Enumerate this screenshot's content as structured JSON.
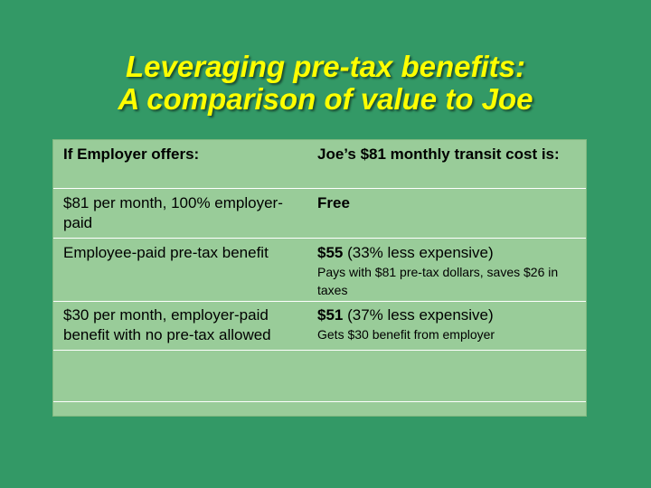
{
  "slide": {
    "title_line1": "Leveraging pre-tax benefits:",
    "title_line2": "A comparison of value to Joe"
  },
  "table": {
    "headers": [
      "If Employer offers:",
      "Joe’s $81 monthly transit cost is:"
    ],
    "rows": [
      {
        "offer": "$81 per month, 100% employer-paid",
        "cost_bold": "Free",
        "cost_rest": "",
        "note": ""
      },
      {
        "offer": "Employee-paid pre-tax benefit",
        "cost_bold": "$55",
        "cost_rest": " (33% less expensive)",
        "note": "Pays with $81 pre-tax dollars, saves $26 in taxes"
      },
      {
        "offer": "$30 per month, employer-paid benefit with no pre-tax allowed",
        "cost_bold": "$51",
        "cost_rest": " (37% less expensive)",
        "note": "Gets $30 benefit from employer"
      },
      {
        "offer": "",
        "cost_bold": "",
        "cost_rest": "",
        "note": ""
      }
    ]
  },
  "colors": {
    "background": "#339966",
    "title": "#ffff00",
    "table_fill": "#99cc99"
  }
}
